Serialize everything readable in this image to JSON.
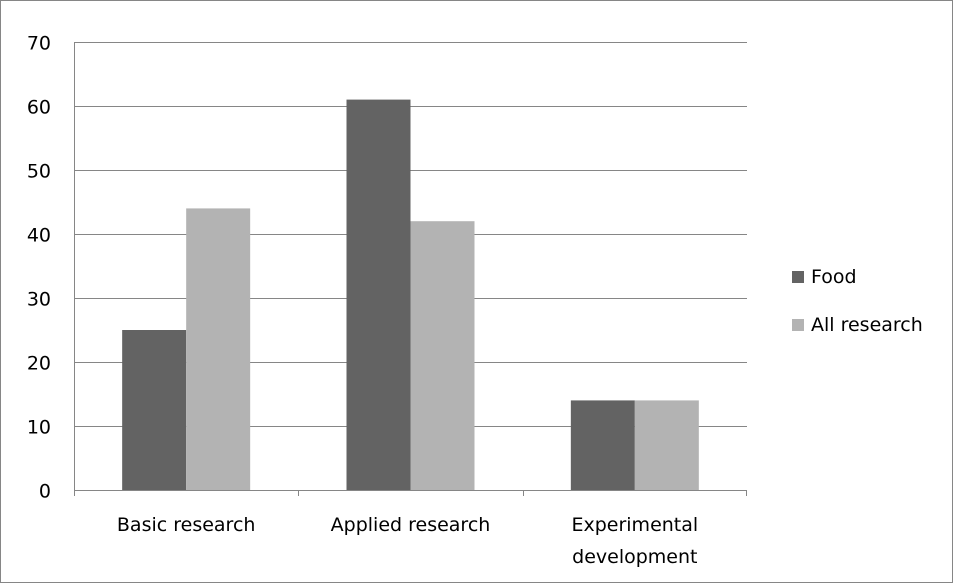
{
  "chart_data": {
    "type": "bar",
    "title": "",
    "xlabel": "",
    "ylabel": "",
    "categories": [
      [
        "Basic research"
      ],
      [
        "Applied research"
      ],
      [
        "Experimental",
        "development"
      ]
    ],
    "series": [
      {
        "name": "Food",
        "values": [
          25,
          61,
          14
        ],
        "color": "#636363"
      },
      {
        "name": "All research",
        "values": [
          44,
          42,
          14
        ],
        "color": "#b3b3b3"
      }
    ],
    "ylim": [
      0,
      70
    ],
    "yticks": [
      0,
      10,
      20,
      30,
      40,
      50,
      60,
      70
    ],
    "grid": true,
    "legend": "right",
    "frame_color": "#868686",
    "grid_color": "#868686"
  }
}
